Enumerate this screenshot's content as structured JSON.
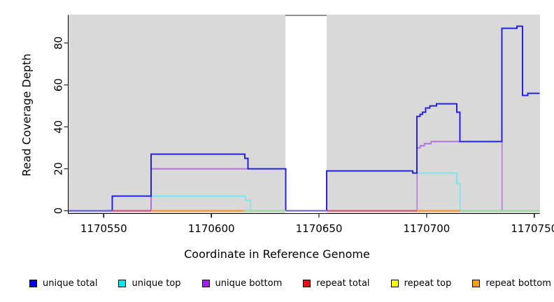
{
  "chart_data": {
    "type": "line",
    "subtype": "step-coverage",
    "title": "",
    "xlabel": "Coordinate in Reference Genome",
    "ylabel": "Read Coverage Depth",
    "xlim": [
      1170533.5,
      1170752.5
    ],
    "ylim": [
      0,
      93
    ],
    "x_ticks": [
      1170550,
      1170600,
      1170650,
      1170700,
      1170750
    ],
    "y_ticks": [
      0,
      20,
      40,
      60,
      80
    ],
    "grid": false,
    "legend_position": "bottom",
    "plot_background": "#d9d9d9",
    "missing_data_region": {
      "x_start": 1170634.5,
      "x_end": 1170653.5,
      "fill": "#ffffff",
      "top_border": "#8f8f8f"
    },
    "series": [
      {
        "name": "unique total",
        "color": "#2522dd",
        "stroke_width": 2,
        "groups": [
          [
            [
              1170533.5,
              1170554,
              0
            ],
            [
              1170554,
              1170572,
              7
            ],
            [
              1170572,
              1170615.5,
              27
            ],
            [
              1170615.5,
              1170617,
              25
            ],
            [
              1170617,
              1170634.5,
              20
            ]
          ],
          [
            [
              1170653.5,
              1170693.5,
              19
            ],
            [
              1170693.5,
              1170695.5,
              18
            ],
            [
              1170695.5,
              1170697,
              45
            ],
            [
              1170697,
              1170698,
              46
            ],
            [
              1170698,
              1170699.5,
              47
            ],
            [
              1170699.5,
              1170701.5,
              49
            ],
            [
              1170701.5,
              1170704.5,
              50
            ],
            [
              1170704.5,
              1170714,
              51
            ],
            [
              1170714,
              1170715.5,
              47
            ],
            [
              1170715.5,
              1170735,
              33
            ],
            [
              1170735,
              1170742,
              87
            ],
            [
              1170742,
              1170744.5,
              88
            ],
            [
              1170744.5,
              1170747,
              55
            ],
            [
              1170747,
              1170752.5,
              56
            ]
          ]
        ]
      },
      {
        "name": "unique top",
        "color": "#74e7f0",
        "stroke_width": 1.6,
        "groups": [
          [
            [
              1170554,
              1170616,
              7
            ],
            [
              1170616,
              1170618,
              5
            ]
          ],
          [
            [
              1170695.5,
              1170714,
              18
            ],
            [
              1170714,
              1170715.5,
              13
            ]
          ]
        ]
      },
      {
        "name": "unique bottom",
        "color": "#b26fe2",
        "stroke_width": 1.6,
        "groups": [
          [
            [
              1170572,
              1170634.5,
              20
            ]
          ],
          [
            [
              1170695.5,
              1170697,
              30
            ],
            [
              1170697,
              1170699,
              31
            ],
            [
              1170699,
              1170702,
              32
            ],
            [
              1170702,
              1170735,
              33
            ]
          ]
        ]
      },
      {
        "name": "repeat total",
        "color": "#e81010",
        "stroke_width": 1.6,
        "groups": [],
        "note": "0 across range; visible only in zero-line overplot"
      },
      {
        "name": "repeat top",
        "color": "#ffff00",
        "stroke_width": 1.6,
        "groups": [],
        "note": "0 across range; visible only in zero-line overplot"
      },
      {
        "name": "repeat bottom",
        "color": "#ffa200",
        "stroke_width": 1.6,
        "groups": [],
        "note": "0 across range; visible only in zero-line overplot"
      }
    ],
    "zero_line_segments": [
      {
        "x_start": 1170533.5,
        "x_end": 1170554,
        "color": "#5a52d8"
      },
      {
        "x_start": 1170554,
        "x_end": 1170572,
        "color": "#d24a78"
      },
      {
        "x_start": 1170572,
        "x_end": 1170615,
        "color": "#ff8c1a"
      },
      {
        "x_start": 1170615,
        "x_end": 1170634.5,
        "color": "#98d898"
      },
      {
        "x_start": 1170634.5,
        "x_end": 1170653.5,
        "color": "#6a5acd"
      },
      {
        "x_start": 1170653.5,
        "x_end": 1170695.5,
        "color": "#d84866"
      },
      {
        "x_start": 1170695.5,
        "x_end": 1170715.5,
        "color": "#ff8c1a"
      },
      {
        "x_start": 1170715.5,
        "x_end": 1170752.5,
        "color": "#98d898"
      }
    ]
  },
  "legend": {
    "items": [
      {
        "label": "unique total",
        "color": "#0000ee"
      },
      {
        "label": "unique top",
        "color": "#00e8e8"
      },
      {
        "label": "unique bottom",
        "color": "#a020f0"
      },
      {
        "label": "repeat total",
        "color": "#e81010"
      },
      {
        "label": "repeat top",
        "color": "#ffff00"
      },
      {
        "label": "repeat bottom",
        "color": "#ffa200"
      }
    ]
  }
}
